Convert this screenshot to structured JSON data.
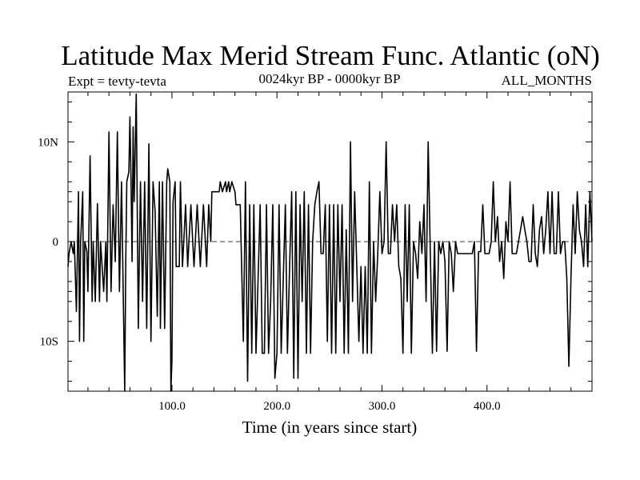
{
  "chart_data": {
    "type": "line",
    "title": "Latitude Max Merid Stream Func. Atlantic (oN)",
    "subtitle_left": "Expt = tevty-tevta",
    "subtitle_center": "0024kyr BP - 0000kyr BP",
    "subtitle_right": "ALL_MONTHS",
    "xlabel": "Time (in years since start)",
    "ylabel": "",
    "xlim": [
      1,
      500
    ],
    "ylim": [
      -15,
      15
    ],
    "x_ticks": [
      {
        "value": 100,
        "label": "100.0"
      },
      {
        "value": 200,
        "label": "200.0"
      },
      {
        "value": 300,
        "label": "300.0"
      },
      {
        "value": 400,
        "label": "400.0"
      }
    ],
    "y_ticks": [
      {
        "value": 10,
        "label": "10N"
      },
      {
        "value": 0,
        "label": "0"
      },
      {
        "value": -10,
        "label": "10S"
      }
    ],
    "reference_line": 0,
    "grid": false,
    "series": [
      {
        "color": "#000000",
        "points": [
          [
            1,
            -2.5
          ],
          [
            2,
            -1.2
          ],
          [
            4,
            0
          ],
          [
            6,
            -1.2
          ],
          [
            7,
            0
          ],
          [
            9,
            -7
          ],
          [
            11,
            5
          ],
          [
            12,
            -10
          ],
          [
            13,
            0
          ],
          [
            15,
            5
          ],
          [
            16,
            -10
          ],
          [
            17,
            0
          ],
          [
            19,
            -1
          ],
          [
            20,
            -5
          ],
          [
            22,
            8.6
          ],
          [
            24,
            -6
          ],
          [
            25,
            0
          ],
          [
            27,
            -6
          ],
          [
            29,
            3.8
          ],
          [
            31,
            -6
          ],
          [
            32,
            0
          ],
          [
            35,
            -5
          ],
          [
            37,
            0
          ],
          [
            38,
            -6
          ],
          [
            40,
            11
          ],
          [
            42,
            -5
          ],
          [
            44,
            3.7
          ],
          [
            46,
            -2
          ],
          [
            48,
            11
          ],
          [
            50,
            -5
          ],
          [
            52,
            6
          ],
          [
            55,
            -15
          ],
          [
            56,
            -2
          ],
          [
            57,
            6
          ],
          [
            59,
            7
          ],
          [
            60,
            12.5
          ],
          [
            61,
            6
          ],
          [
            62,
            -2
          ],
          [
            63,
            11.5
          ],
          [
            64,
            4
          ],
          [
            66,
            14.8
          ],
          [
            68,
            -8.7
          ],
          [
            70,
            6
          ],
          [
            72,
            -6
          ],
          [
            74,
            6
          ],
          [
            76,
            -8.7
          ],
          [
            78,
            9.8
          ],
          [
            80,
            -10
          ],
          [
            82,
            6
          ],
          [
            84,
            3
          ],
          [
            86,
            -7.5
          ],
          [
            88,
            6
          ],
          [
            89,
            -8.7
          ],
          [
            91,
            6
          ],
          [
            93,
            -8.7
          ],
          [
            95,
            6
          ],
          [
            96,
            7.3
          ],
          [
            98,
            6
          ],
          [
            99,
            -15
          ],
          [
            100,
            -12
          ],
          [
            101,
            4
          ],
          [
            103,
            6
          ],
          [
            104,
            -2.5
          ],
          [
            107,
            -2.5
          ],
          [
            108,
            6
          ],
          [
            110,
            -2.5
          ],
          [
            113,
            3.7
          ],
          [
            115,
            -2.5
          ],
          [
            118,
            3.7
          ],
          [
            121,
            -2.5
          ],
          [
            124,
            3.7
          ],
          [
            127,
            -2.5
          ],
          [
            130,
            3.7
          ],
          [
            133,
            -2.5
          ],
          [
            135,
            3.7
          ],
          [
            137,
            0
          ],
          [
            138,
            5
          ],
          [
            141,
            5
          ],
          [
            143,
            5
          ],
          [
            145,
            5
          ],
          [
            146,
            6
          ],
          [
            148,
            5
          ],
          [
            151,
            6
          ],
          [
            152,
            5
          ],
          [
            154,
            6
          ],
          [
            155,
            5
          ],
          [
            157,
            6
          ],
          [
            160,
            5
          ],
          [
            161,
            3.7
          ],
          [
            165,
            3.7
          ],
          [
            168,
            -10
          ],
          [
            170,
            6
          ],
          [
            172,
            -14
          ],
          [
            174,
            3.7
          ],
          [
            176,
            -11.2
          ],
          [
            178,
            3.7
          ],
          [
            180,
            -11.2
          ],
          [
            182,
            -3.7
          ],
          [
            184,
            3.7
          ],
          [
            186,
            -11.2
          ],
          [
            188,
            -11.2
          ],
          [
            190,
            3.7
          ],
          [
            192,
            -11.2
          ],
          [
            194,
            -6
          ],
          [
            196,
            3.7
          ],
          [
            198,
            -13.7
          ],
          [
            200,
            -11.2
          ],
          [
            202,
            3.7
          ],
          [
            204,
            -11.2
          ],
          [
            206,
            -3.7
          ],
          [
            208,
            3.7
          ],
          [
            210,
            -11.2
          ],
          [
            212,
            -2.5
          ],
          [
            214,
            5
          ],
          [
            216,
            -13.7
          ],
          [
            218,
            5
          ],
          [
            220,
            -13.7
          ],
          [
            222,
            3.7
          ],
          [
            224,
            -6
          ],
          [
            226,
            5
          ],
          [
            228,
            -11.2
          ],
          [
            230,
            3.7
          ],
          [
            232,
            -11.2
          ],
          [
            234,
            0
          ],
          [
            236,
            3.7
          ],
          [
            238,
            5
          ],
          [
            240,
            6
          ],
          [
            242,
            -1.2
          ],
          [
            244,
            -1.2
          ],
          [
            246,
            3.7
          ],
          [
            248,
            -10
          ],
          [
            250,
            3.7
          ],
          [
            252,
            -11.2
          ],
          [
            254,
            3.7
          ],
          [
            256,
            -11.2
          ],
          [
            258,
            3.7
          ],
          [
            260,
            -6
          ],
          [
            262,
            3.7
          ],
          [
            264,
            -11.2
          ],
          [
            266,
            1.2
          ],
          [
            268,
            -11.2
          ],
          [
            270,
            10
          ],
          [
            272,
            -6
          ],
          [
            274,
            5
          ],
          [
            276,
            -2.5
          ],
          [
            278,
            -10
          ],
          [
            280,
            -2.5
          ],
          [
            282,
            -11.2
          ],
          [
            284,
            -2.5
          ],
          [
            286,
            -11.2
          ],
          [
            288,
            6
          ],
          [
            290,
            -11.2
          ],
          [
            292,
            0
          ],
          [
            294,
            -6
          ],
          [
            296,
            -1.2
          ],
          [
            298,
            5
          ],
          [
            300,
            -1.2
          ],
          [
            302,
            0
          ],
          [
            304,
            10
          ],
          [
            306,
            -1.2
          ],
          [
            308,
            -1.2
          ],
          [
            310,
            3.7
          ],
          [
            312,
            0
          ],
          [
            314,
            3.7
          ],
          [
            316,
            -2.5
          ],
          [
            318,
            -3.7
          ],
          [
            320,
            -11.2
          ],
          [
            322,
            3.7
          ],
          [
            324,
            -6
          ],
          [
            326,
            3.7
          ],
          [
            328,
            -11.2
          ],
          [
            330,
            0
          ],
          [
            332,
            -1.2
          ],
          [
            334,
            -3.7
          ],
          [
            336,
            2
          ],
          [
            338,
            -1.2
          ],
          [
            340,
            3.7
          ],
          [
            342,
            -6
          ],
          [
            344,
            10
          ],
          [
            346,
            -1.2
          ],
          [
            348,
            -11.2
          ],
          [
            350,
            0
          ],
          [
            352,
            -11
          ],
          [
            354,
            0
          ],
          [
            356,
            -1.2
          ],
          [
            358,
            0
          ],
          [
            360,
            -2
          ],
          [
            362,
            -11
          ],
          [
            364,
            0
          ],
          [
            366,
            -1.2
          ],
          [
            368,
            -5
          ],
          [
            370,
            0
          ],
          [
            372,
            -1.2
          ],
          [
            374,
            -1.2
          ],
          [
            376,
            -1.2
          ],
          [
            378,
            -1.2
          ],
          [
            380,
            -1.2
          ],
          [
            382,
            -1.2
          ],
          [
            384,
            -1.2
          ],
          [
            386,
            -1.2
          ],
          [
            388,
            0
          ],
          [
            390,
            -11
          ],
          [
            392,
            -1
          ],
          [
            394,
            -1
          ],
          [
            396,
            3.7
          ],
          [
            398,
            -1.2
          ],
          [
            400,
            -1.2
          ],
          [
            402,
            -1.2
          ],
          [
            404,
            0
          ],
          [
            406,
            6
          ],
          [
            408,
            0
          ],
          [
            410,
            2.5
          ],
          [
            412,
            -2
          ],
          [
            414,
            0
          ],
          [
            416,
            -3.7
          ],
          [
            418,
            2
          ],
          [
            420,
            0
          ],
          [
            422,
            6
          ],
          [
            424,
            -1.2
          ],
          [
            426,
            -1.2
          ],
          [
            428,
            -1.2
          ],
          [
            430,
            0
          ],
          [
            432,
            1.2
          ],
          [
            434,
            2.5
          ],
          [
            436,
            1.2
          ],
          [
            438,
            0
          ],
          [
            440,
            -2
          ],
          [
            442,
            -2
          ],
          [
            444,
            3.7
          ],
          [
            446,
            -1.2
          ],
          [
            448,
            -2.5
          ],
          [
            450,
            1.2
          ],
          [
            452,
            2.5
          ],
          [
            454,
            -1.2
          ],
          [
            456,
            1.2
          ],
          [
            458,
            5
          ],
          [
            460,
            -1.2
          ],
          [
            462,
            5
          ],
          [
            464,
            -1.2
          ],
          [
            466,
            -1.2
          ],
          [
            468,
            5
          ],
          [
            470,
            -1.2
          ],
          [
            472,
            0
          ],
          [
            474,
            0
          ],
          [
            476,
            -3.7
          ],
          [
            478,
            -12.5
          ],
          [
            480,
            -3.7
          ],
          [
            482,
            3.7
          ],
          [
            484,
            -1.2
          ],
          [
            486,
            5
          ],
          [
            488,
            1.2
          ],
          [
            490,
            0
          ],
          [
            492,
            -2.5
          ],
          [
            494,
            3.7
          ],
          [
            496,
            -2.5
          ],
          [
            498,
            5
          ],
          [
            500,
            0
          ]
        ]
      }
    ]
  }
}
